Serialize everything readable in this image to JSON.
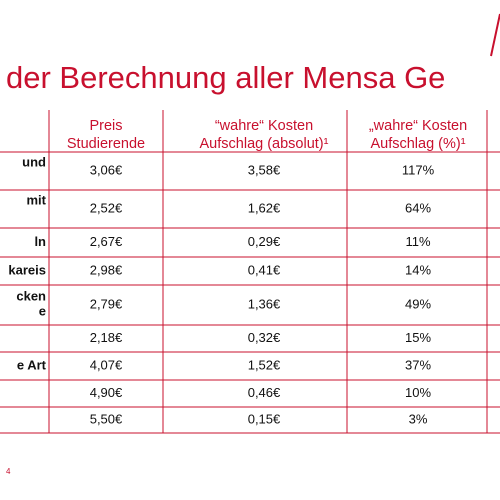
{
  "header": {
    "title": "der Berechnung aller Mensa Ge"
  },
  "table": {
    "columns": [
      [
        "Preis",
        "Studierende"
      ],
      [
        "“wahre“ Kosten",
        "Aufschlag (absolut)¹"
      ],
      [
        "„wahre“ Kosten",
        "Aufschlag (%)¹"
      ]
    ],
    "rows": [
      {
        "label": [
          "und"
        ],
        "cells": [
          "3,06€",
          "3,58€",
          "117%"
        ]
      },
      {
        "label": [
          "mit"
        ],
        "cells": [
          "2,52€",
          "1,62€",
          "64%"
        ]
      },
      {
        "label": [
          "ln"
        ],
        "cells": [
          "2,67€",
          "0,29€",
          "11%"
        ]
      },
      {
        "label": [
          "kareis"
        ],
        "cells": [
          "2,98€",
          "0,41€",
          "14%"
        ]
      },
      {
        "label": [
          "cken",
          "e"
        ],
        "cells": [
          "2,79€",
          "1,36€",
          "49%"
        ]
      },
      {
        "label": [],
        "cells": [
          "2,18€",
          "0,32€",
          "15%"
        ]
      },
      {
        "label": [
          "e Art"
        ],
        "cells": [
          "4,07€",
          "1,52€",
          "37%"
        ]
      },
      {
        "label": [],
        "cells": [
          "4,90€",
          "0,46€",
          "10%"
        ]
      },
      {
        "label": [],
        "cells": [
          "5,50€",
          "0,15€",
          "3%"
        ]
      }
    ]
  },
  "footer": {
    "page": "4"
  }
}
